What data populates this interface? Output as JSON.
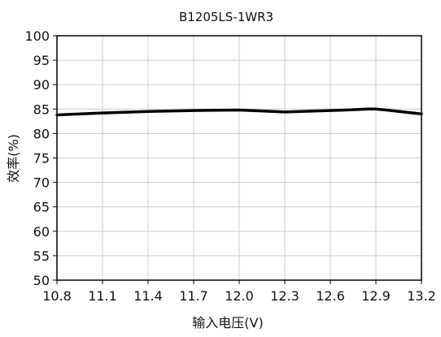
{
  "chart_data": {
    "type": "line",
    "title": "B1205LS-1WR3",
    "xlabel": "输入电压(V)",
    "ylabel": "效率(%)",
    "xlim": [
      10.8,
      13.2
    ],
    "ylim": [
      50,
      100
    ],
    "x_ticks": [
      "10.8",
      "11.1",
      "11.4",
      "11.7",
      "12.0",
      "12.3",
      "12.6",
      "12.9",
      "13.2"
    ],
    "y_ticks": [
      "100",
      "95",
      "90",
      "85",
      "80",
      "75",
      "70",
      "65",
      "60",
      "55",
      "50"
    ],
    "grid": true,
    "legend": "none",
    "line_color": "#000000",
    "grid_color": "#cccccc",
    "series": [
      {
        "x": [
          10.8,
          11.1,
          11.4,
          11.7,
          12.0,
          12.3,
          12.6,
          12.7,
          12.85,
          12.9,
          13.0,
          13.2
        ],
        "y": [
          83.8,
          84.2,
          84.5,
          84.7,
          84.8,
          84.4,
          84.7,
          84.8,
          85.0,
          85.0,
          84.7,
          84.0
        ]
      }
    ]
  }
}
